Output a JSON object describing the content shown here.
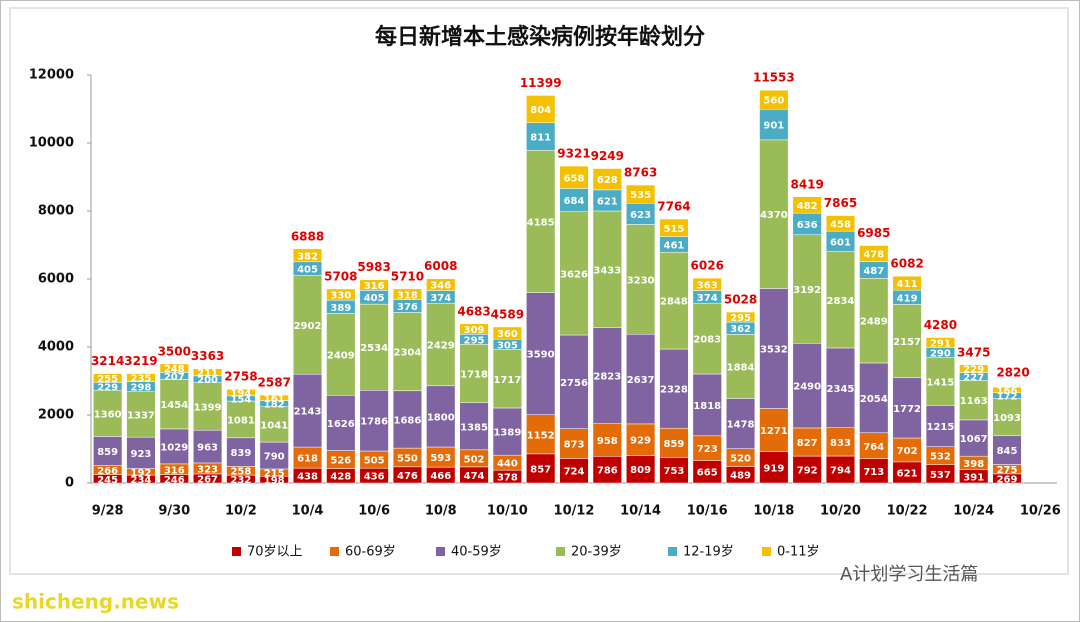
{
  "chart_data": {
    "type": "stacked_bar",
    "title": "每日新增本土感染病例按年龄划分",
    "categories": [
      "9/28",
      null,
      "9/30",
      null,
      "10/2",
      null,
      "10/4",
      null,
      "10/6",
      null,
      "10/8",
      null,
      "10/10",
      null,
      "10/12",
      null,
      "10/14",
      null,
      "10/16",
      null,
      "10/18",
      null,
      "10/20",
      null,
      "10/22",
      null,
      "10/24",
      null,
      "10/26"
    ],
    "series": [
      {
        "name": "70岁以上",
        "color": "#c00000",
        "values": [
          245,
          234,
          246,
          267,
          232,
          198,
          438,
          428,
          436,
          476,
          466,
          474,
          378,
          857,
          724,
          786,
          809,
          753,
          665,
          489,
          919,
          792,
          794,
          713,
          621,
          537,
          391,
          269,
          null
        ]
      },
      {
        "name": "60-69岁",
        "color": "#e36c09",
        "values": [
          266,
          192,
          316,
          323,
          258,
          215,
          618,
          526,
          505,
          550,
          593,
          502,
          440,
          1152,
          873,
          958,
          929,
          859,
          723,
          520,
          1271,
          827,
          833,
          764,
          702,
          532,
          398,
          275,
          null
        ]
      },
      {
        "name": "40-59岁",
        "color": "#8064a2",
        "values": [
          859,
          923,
          1029,
          963,
          839,
          790,
          2143,
          1626,
          1786,
          1686,
          1800,
          1385,
          1389,
          3590,
          2756,
          2823,
          2637,
          2328,
          1818,
          1478,
          3532,
          2490,
          2345,
          2054,
          1772,
          1215,
          1067,
          845,
          null
        ]
      },
      {
        "name": "20-39岁",
        "color": "#9bbb59",
        "values": [
          1360,
          1337,
          1454,
          1399,
          1081,
          1041,
          2902,
          2409,
          2534,
          2304,
          2429,
          1718,
          1717,
          4185,
          3626,
          3433,
          3230,
          2848,
          2083,
          1884,
          4370,
          3192,
          2834,
          2489,
          2157,
          1415,
          1163,
          1093,
          null
        ]
      },
      {
        "name": "12-19岁",
        "color": "#4bacc6",
        "values": [
          229,
          298,
          207,
          200,
          154,
          182,
          405,
          389,
          405,
          376,
          374,
          295,
          305,
          811,
          684,
          621,
          623,
          461,
          374,
          362,
          901,
          636,
          601,
          487,
          419,
          290,
          227,
          172,
          null
        ]
      },
      {
        "name": "0-11岁",
        "color": "#f5c000",
        "values": [
          255,
          235,
          248,
          211,
          194,
          161,
          382,
          330,
          316,
          318,
          346,
          309,
          360,
          804,
          658,
          628,
          535,
          515,
          363,
          295,
          560,
          482,
          458,
          478,
          411,
          291,
          229,
          166,
          null
        ]
      }
    ],
    "totals": [
      3214,
      3219,
      3500,
      3363,
      2758,
      2587,
      6888,
      5708,
      5983,
      5710,
      6008,
      4683,
      4589,
      11399,
      9321,
      9249,
      8763,
      7764,
      6026,
      5028,
      11553,
      8419,
      7865,
      6985,
      6082,
      4280,
      3475,
      2820,
      null
    ],
    "ylim": [
      0,
      12000
    ],
    "yticks": [
      0,
      2000,
      4000,
      6000,
      8000,
      10000,
      12000
    ],
    "legend": "bottom"
  },
  "watermarks": [
    "shicheng.news",
    "A计划学习生活篇"
  ]
}
